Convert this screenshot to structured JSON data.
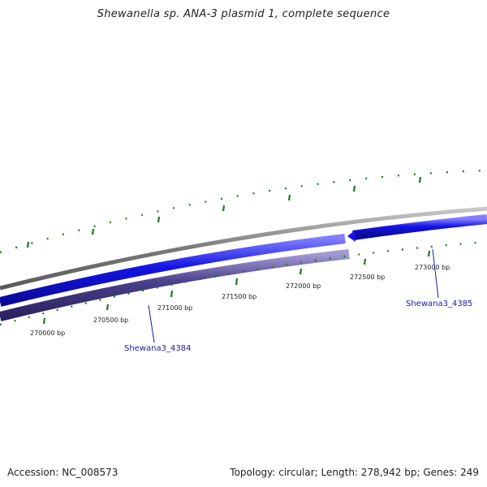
{
  "title": "Shewanella sp. ANA-3 plasmid 1, complete sequence",
  "footer": {
    "accession": "Accession: NC_008573",
    "summary": "Topology: circular; Length: 278,942 bp; Genes: 249"
  },
  "ticks": [
    {
      "label": "270000 bp"
    },
    {
      "label": "270500 bp"
    },
    {
      "label": "271000 bp"
    },
    {
      "label": "271500 bp"
    },
    {
      "label": "272000 bp"
    },
    {
      "label": "272500 bp"
    },
    {
      "label": "273000 bp"
    }
  ],
  "genes": [
    {
      "label": "Shewana3_4384"
    },
    {
      "label": "Shewana3_4385"
    }
  ],
  "colors": {
    "backbone": "#8a8a8a",
    "forward_gene": "#1414e6",
    "reverse_gene": "#4a3f8c",
    "gc_ticks": "#1a7a1a",
    "gene_label": "#1a1aa6"
  }
}
